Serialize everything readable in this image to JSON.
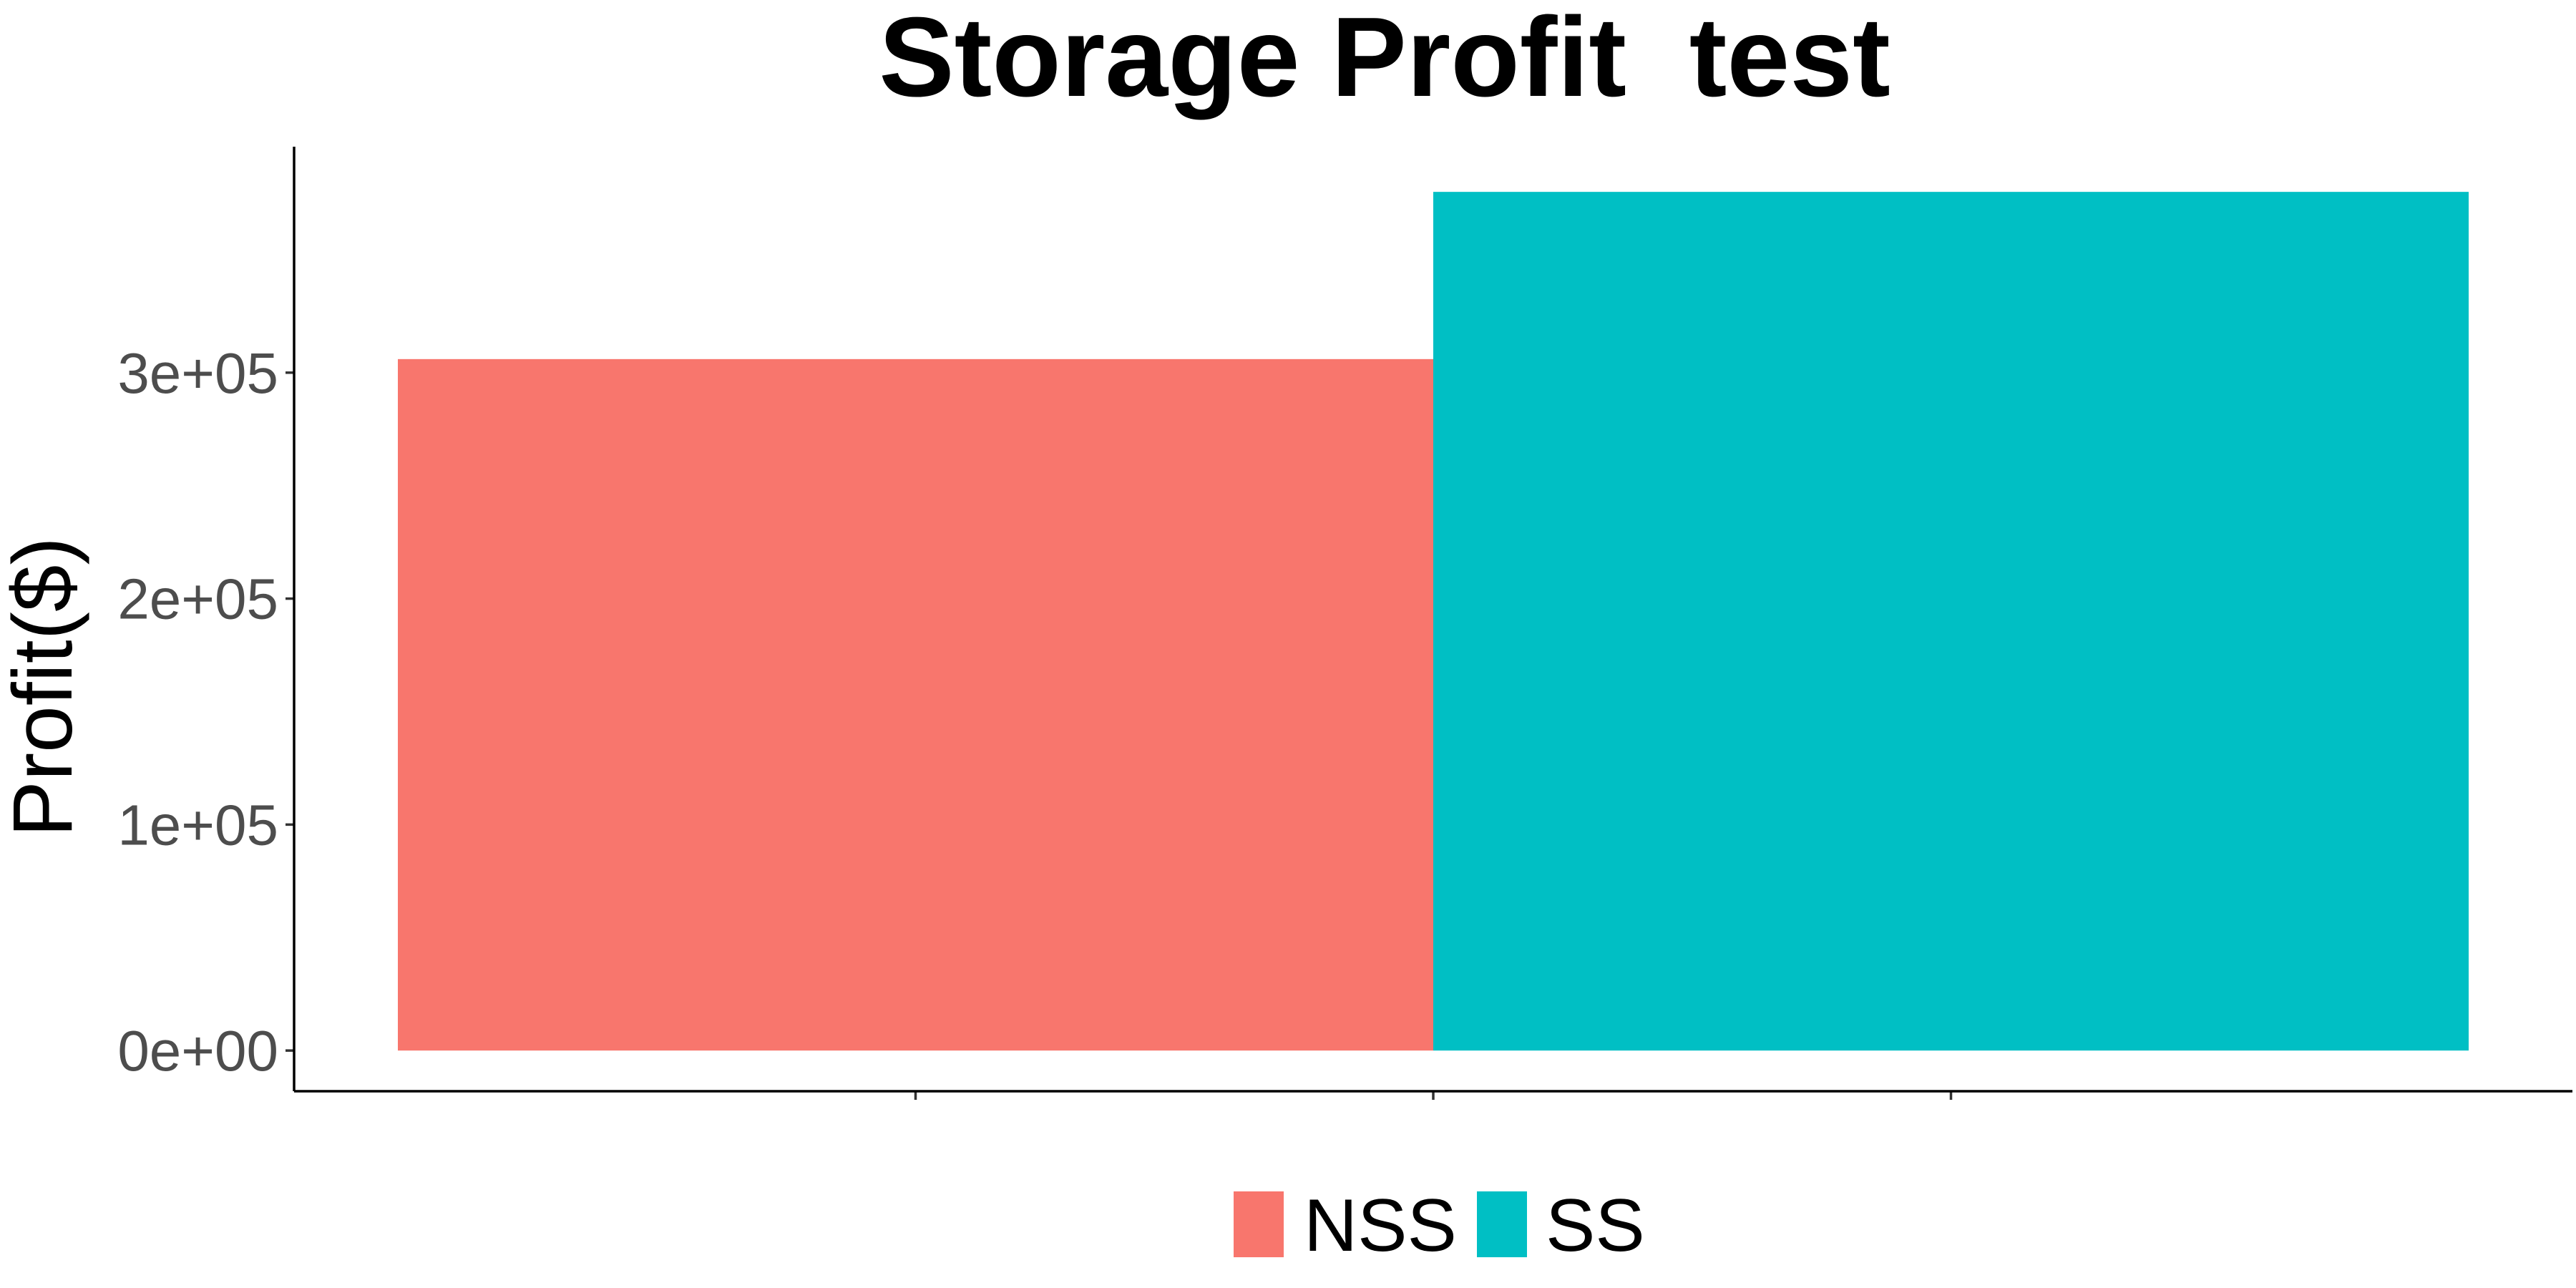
{
  "chart_data": {
    "type": "bar",
    "title": "Storage Profit  test",
    "xlabel": "",
    "ylabel": "Profit($)",
    "categories": [
      "NSS",
      "SS"
    ],
    "values": [
      306000,
      380000
    ],
    "colors": [
      "#f8766d",
      "#00bfc4"
    ],
    "ylim": [
      -18000,
      400000
    ],
    "yticks": [
      0,
      100000,
      200000,
      300000
    ],
    "ytick_labels": [
      "0e+00",
      "1e+05",
      "2e+05",
      "3e+05"
    ],
    "grid": false,
    "legend": {
      "placement": "bottom",
      "entries": [
        {
          "label": "NSS",
          "color": "#f8766d"
        },
        {
          "label": "SS",
          "color": "#00bfc4"
        }
      ]
    }
  }
}
